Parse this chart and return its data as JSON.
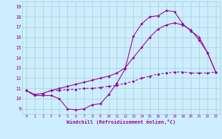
{
  "xlabel": "Windchill (Refroidissement éolien,°C)",
  "bg_color": "#cceeff",
  "line_color": "#990099",
  "grid_color": "#aacccc",
  "xlim": [
    -0.5,
    23.5
  ],
  "ylim": [
    8.5,
    19.5
  ],
  "xticks": [
    0,
    1,
    2,
    3,
    4,
    5,
    6,
    7,
    8,
    9,
    10,
    11,
    12,
    13,
    14,
    15,
    16,
    17,
    18,
    19,
    20,
    21,
    22,
    23
  ],
  "yticks": [
    9,
    10,
    11,
    12,
    13,
    14,
    15,
    16,
    17,
    18,
    19
  ],
  "line1_x": [
    0,
    1,
    2,
    3,
    4,
    5,
    6,
    7,
    8,
    9,
    10,
    11,
    12,
    13,
    14,
    15,
    16,
    17,
    18,
    19,
    20,
    21,
    22,
    23
  ],
  "line1_y": [
    10.8,
    10.3,
    10.3,
    10.3,
    10.0,
    9.0,
    8.9,
    9.0,
    9.4,
    9.5,
    10.4,
    11.5,
    12.9,
    16.1,
    17.3,
    18.0,
    18.1,
    18.6,
    18.5,
    17.3,
    16.6,
    16.0,
    14.5,
    12.6
  ],
  "line2_x": [
    0,
    1,
    2,
    3,
    4,
    5,
    6,
    7,
    8,
    9,
    10,
    11,
    12,
    13,
    14,
    15,
    16,
    17,
    18,
    19,
    20,
    21,
    22,
    23
  ],
  "line2_y": [
    10.8,
    10.4,
    10.5,
    10.8,
    10.8,
    10.9,
    10.9,
    11.0,
    11.0,
    11.1,
    11.2,
    11.3,
    11.5,
    11.7,
    12.0,
    12.2,
    12.4,
    12.5,
    12.6,
    12.6,
    12.5,
    12.5,
    12.5,
    12.6
  ],
  "line3_x": [
    0,
    1,
    2,
    3,
    4,
    5,
    6,
    7,
    8,
    9,
    10,
    11,
    12,
    13,
    14,
    15,
    16,
    17,
    18,
    19,
    20,
    21,
    22,
    23
  ],
  "line3_y": [
    10.8,
    10.4,
    10.5,
    10.8,
    11.0,
    11.2,
    11.4,
    11.6,
    11.8,
    12.0,
    12.2,
    12.5,
    13.0,
    14.0,
    15.0,
    16.0,
    16.8,
    17.2,
    17.4,
    17.2,
    16.7,
    15.7,
    14.5,
    12.6
  ],
  "marker_size": 1.8,
  "line_width": 0.8
}
